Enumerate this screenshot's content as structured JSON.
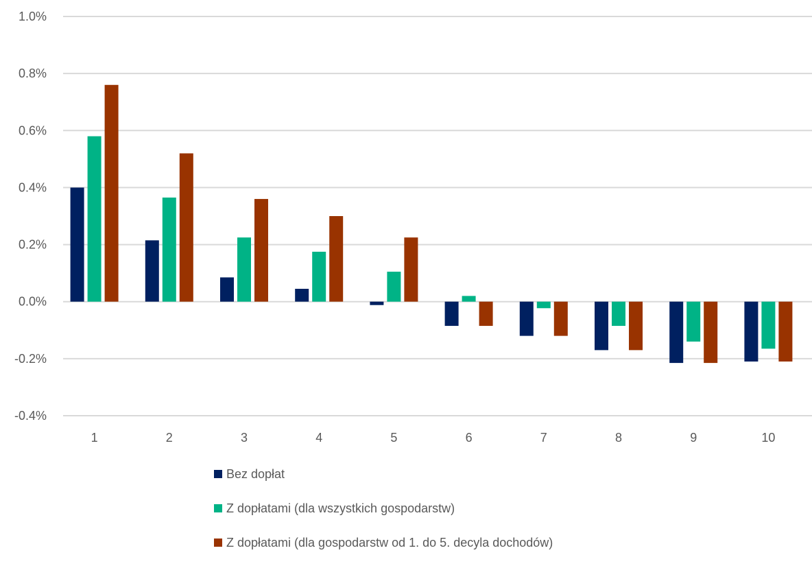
{
  "chart_data": {
    "type": "bar",
    "categories": [
      "1",
      "2",
      "3",
      "4",
      "5",
      "6",
      "7",
      "8",
      "9",
      "10"
    ],
    "y_ticks": [
      "1.0%",
      "0.8%",
      "0.6%",
      "0.4%",
      "0.2%",
      "0.0%",
      "-0.2%",
      "-0.4%"
    ],
    "ylim": [
      -0.4,
      1.0
    ],
    "ytick_step": 0.2,
    "grid": true,
    "legend_placement": "bottom",
    "series": [
      {
        "name": "Bez dopłat",
        "color": "#002060",
        "values": [
          0.4,
          0.215,
          0.085,
          0.045,
          -0.012,
          -0.085,
          -0.12,
          -0.17,
          -0.215,
          -0.21
        ]
      },
      {
        "name": "Z dopłatami (dla wszystkich gospodarstw)",
        "color": "#00B386",
        "values": [
          0.58,
          0.365,
          0.225,
          0.175,
          0.105,
          0.02,
          -0.023,
          -0.085,
          -0.14,
          -0.165
        ]
      },
      {
        "name": "Z dopłatami (dla gospodarstw od 1. do 5. decyla dochodów)",
        "color": "#993300",
        "values": [
          0.76,
          0.52,
          0.36,
          0.3,
          0.225,
          -0.085,
          -0.12,
          -0.17,
          -0.215,
          -0.21
        ]
      }
    ]
  }
}
